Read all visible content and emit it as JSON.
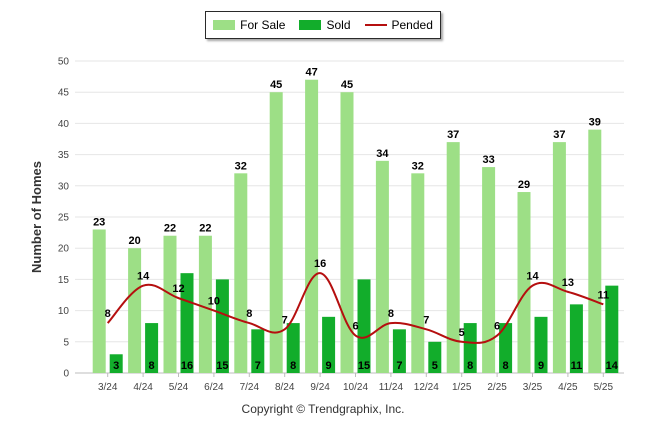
{
  "legend": {
    "for_sale": "For Sale",
    "sold": "Sold",
    "pended": "Pended"
  },
  "copyright": "Copyright © Trendgraphix, Inc.",
  "colors": {
    "for_sale": "#9ddf86",
    "sold": "#12ad2b",
    "pended": "#b50f0f"
  },
  "chart_data": {
    "type": "bar",
    "categories": [
      "3/24",
      "4/24",
      "5/24",
      "6/24",
      "7/24",
      "8/24",
      "9/24",
      "10/24",
      "11/24",
      "12/24",
      "1/25",
      "2/25",
      "3/25",
      "4/25",
      "5/25"
    ],
    "series": [
      {
        "name": "For Sale",
        "type": "bar",
        "values": [
          23,
          20,
          22,
          22,
          32,
          45,
          47,
          45,
          34,
          32,
          37,
          33,
          29,
          37,
          39
        ]
      },
      {
        "name": "Sold",
        "type": "bar",
        "values": [
          3,
          8,
          16,
          15,
          7,
          8,
          9,
          15,
          7,
          5,
          8,
          8,
          9,
          11,
          14
        ]
      },
      {
        "name": "Pended",
        "type": "line",
        "values": [
          8,
          14,
          12,
          10,
          8,
          7,
          16,
          6,
          8,
          7,
          5,
          6,
          14,
          13,
          11
        ]
      }
    ],
    "ylabel": "Number of Homes",
    "xlabel": "",
    "ylim": [
      0,
      50
    ],
    "yticks": [
      0,
      5,
      10,
      15,
      20,
      25,
      30,
      35,
      40,
      45,
      50
    ],
    "grid": true,
    "legend_position": "top-center"
  }
}
